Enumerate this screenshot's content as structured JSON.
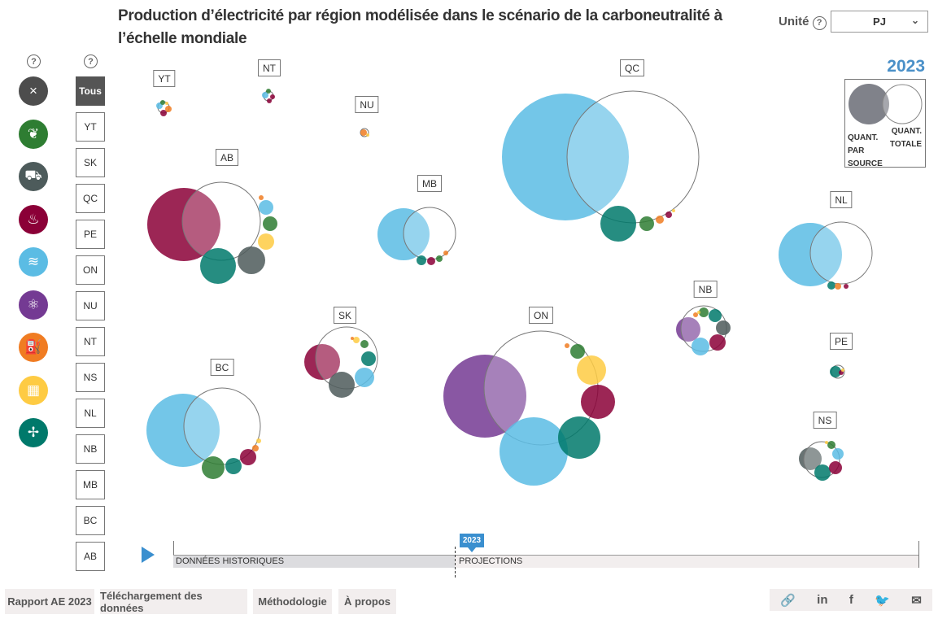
{
  "title": "Production d’électricité par région modélisée dans le scénario de la carboneutralité à l’échelle mondiale",
  "unit": {
    "label": "Unité",
    "help": "?",
    "selected": "PJ"
  },
  "year": "2023",
  "legend": {
    "by_source": "QUANT. PAR SOURCE",
    "total": "QUANT. TOTALE",
    "by_source_color": "#80828a"
  },
  "sources": [
    {
      "name": "all-clear",
      "icon": "×",
      "color": "#4d4d4d"
    },
    {
      "name": "biomass",
      "icon": "❦",
      "color": "#2e7d32"
    },
    {
      "name": "coal",
      "icon": "⛟",
      "color": "#4d5b5b"
    },
    {
      "name": "natural-gas",
      "icon": "♨",
      "color": "#8b0037"
    },
    {
      "name": "hydro",
      "icon": "≋",
      "color": "#5bbce4"
    },
    {
      "name": "nuclear",
      "icon": "⚛",
      "color": "#743a93"
    },
    {
      "name": "oil",
      "icon": "⛽",
      "color": "#f07c22"
    },
    {
      "name": "solar",
      "icon": "▦",
      "color": "#fecb43"
    },
    {
      "name": "wind",
      "icon": "✢",
      "color": "#00796b"
    }
  ],
  "help": "?",
  "regions_filter": [
    "Tous",
    "YT",
    "SK",
    "QC",
    "PE",
    "ON",
    "NU",
    "NT",
    "NS",
    "NL",
    "NB",
    "MB",
    "BC",
    "AB"
  ],
  "region_labels": [
    "YT",
    "NT",
    "NU",
    "QC",
    "AB",
    "MB",
    "NL",
    "NB",
    "SK",
    "ON",
    "BC",
    "PE",
    "NS"
  ],
  "timeline": {
    "historical": "DONNÉES HISTORIQUES",
    "projections": "PROJECTIONS",
    "current": "2023"
  },
  "footer": {
    "buttons": [
      "Rapport AE 2023",
      "Téléchargement des données",
      "Méthodologie",
      "À propos"
    ],
    "share": [
      "link",
      "linkedin",
      "facebook",
      "twitter",
      "email"
    ]
  }
}
